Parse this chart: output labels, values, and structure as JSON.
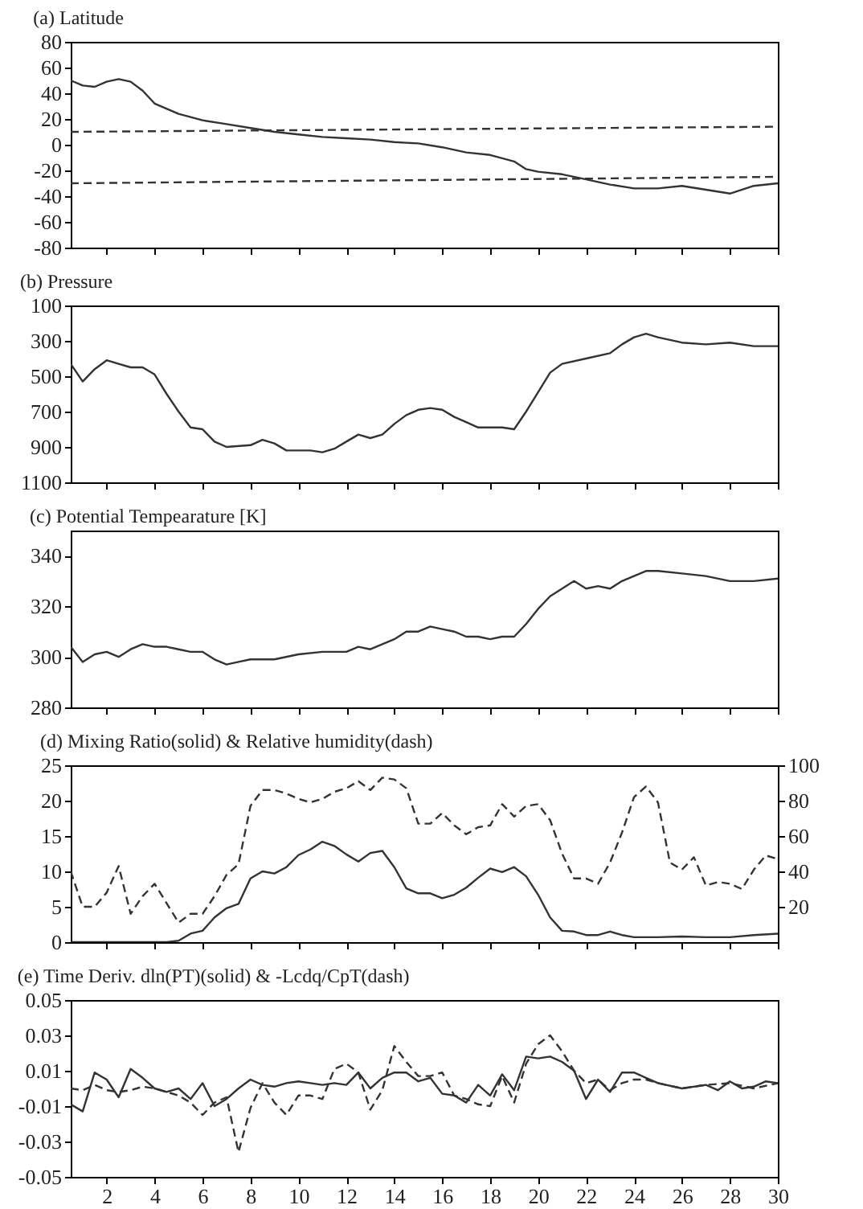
{
  "chart_data": [
    {
      "type": "line",
      "title": "(a) Latitude",
      "xlim": [
        0.5,
        30
      ],
      "xticks": [
        2,
        4,
        6,
        8,
        10,
        12,
        14,
        16,
        18,
        20,
        22,
        24,
        26,
        28,
        30
      ],
      "ylim": [
        -80,
        80
      ],
      "yticks": [
        -80,
        -60,
        -40,
        -20,
        0,
        20,
        40,
        60,
        80
      ],
      "tick_labels": "y",
      "grid": false,
      "series": [
        {
          "color": "#333333",
          "line_style": "solid",
          "x": [
            0.5,
            1,
            1.5,
            2,
            2.5,
            3,
            3.5,
            4,
            5,
            6,
            7,
            8,
            9,
            10,
            11,
            12,
            13,
            14,
            15,
            16,
            17,
            18,
            19,
            19.5,
            20,
            21,
            22,
            23,
            24,
            25,
            26,
            27,
            28,
            29,
            30
          ],
          "values": [
            50,
            46,
            45,
            49,
            51,
            49,
            42,
            32,
            24,
            19,
            16,
            13,
            10,
            8,
            6,
            5,
            4,
            2,
            1,
            -2,
            -6,
            -8,
            -13,
            -19,
            -21,
            -23,
            -27,
            -31,
            -34,
            -34,
            -32,
            -35,
            -38,
            -32,
            -30
          ]
        },
        {
          "color": "#333333",
          "line_style": "dashed",
          "x": [
            0.5,
            30
          ],
          "values": [
            10,
            14
          ]
        },
        {
          "color": "#333333",
          "line_style": "dashed",
          "x": [
            0.5,
            30
          ],
          "values": [
            -30,
            -25
          ]
        }
      ]
    },
    {
      "type": "line",
      "title": "(b) Pressure",
      "xlim": [
        0.5,
        30
      ],
      "xticks": [
        2,
        4,
        6,
        8,
        10,
        12,
        14,
        16,
        18,
        20,
        22,
        24,
        26,
        28,
        30
      ],
      "ylim": [
        1100,
        100
      ],
      "yticks": [
        100,
        300,
        500,
        700,
        900,
        1100
      ],
      "tick_labels": "y",
      "grid": false,
      "series": [
        {
          "color": "#333333",
          "line_style": "solid",
          "x": [
            0.5,
            1,
            1.5,
            2,
            2.5,
            3,
            3.5,
            4,
            4.5,
            5,
            5.5,
            6,
            6.5,
            7,
            8,
            8.5,
            9,
            9.5,
            10,
            10.5,
            11,
            11.5,
            12,
            12.5,
            13,
            13.5,
            14,
            14.5,
            15,
            15.5,
            16,
            16.5,
            17,
            17.5,
            18,
            18.5,
            19,
            19.5,
            20,
            20.5,
            21,
            22,
            23,
            23.5,
            24,
            24.5,
            25,
            26,
            27,
            28,
            29,
            30
          ],
          "values": [
            430,
            530,
            460,
            410,
            430,
            450,
            450,
            490,
            600,
            700,
            790,
            800,
            870,
            900,
            890,
            860,
            880,
            920,
            920,
            920,
            930,
            910,
            870,
            830,
            850,
            830,
            770,
            720,
            690,
            680,
            690,
            730,
            760,
            790,
            790,
            790,
            800,
            700,
            590,
            480,
            430,
            400,
            370,
            320,
            280,
            260,
            280,
            310,
            320,
            310,
            330,
            330
          ]
        }
      ]
    },
    {
      "type": "line",
      "title": "(c) Potential Tempearature [K]",
      "xlim": [
        0.5,
        30
      ],
      "xticks": [
        2,
        4,
        6,
        8,
        10,
        12,
        14,
        16,
        18,
        20,
        22,
        24,
        26,
        28,
        30
      ],
      "ylim": [
        280,
        350
      ],
      "yticks": [
        280,
        300,
        320,
        340
      ],
      "tick_labels": "y",
      "grid": false,
      "series": [
        {
          "color": "#333333",
          "line_style": "solid",
          "x": [
            0.5,
            1,
            1.5,
            2,
            2.5,
            3,
            3.5,
            4,
            4.5,
            5,
            5.5,
            6,
            6.5,
            7,
            7.5,
            8,
            9,
            10,
            11,
            12,
            12.5,
            13,
            13.5,
            14,
            14.5,
            15,
            15.5,
            16,
            16.5,
            17,
            17.5,
            18,
            18.5,
            19,
            19.5,
            20,
            20.5,
            21,
            21.5,
            22,
            22.5,
            23,
            23.5,
            24,
            24.5,
            25,
            26,
            27,
            28,
            29,
            30
          ],
          "values": [
            304,
            298,
            301,
            302,
            300,
            303,
            305,
            304,
            304,
            303,
            302,
            302,
            299,
            297,
            298,
            299,
            299,
            301,
            302,
            302,
            304,
            303,
            305,
            307,
            310,
            310,
            312,
            311,
            310,
            308,
            308,
            307,
            308,
            308,
            313,
            319,
            324,
            327,
            330,
            327,
            328,
            327,
            330,
            332,
            334,
            334,
            333,
            332,
            330,
            330,
            331
          ]
        }
      ]
    },
    {
      "type": "line",
      "title": "(d) Mixing Ratio(solid) & Relative humidity(dash)",
      "xlim": [
        0.5,
        30
      ],
      "xticks": [
        2,
        4,
        6,
        8,
        10,
        12,
        14,
        16,
        18,
        20,
        22,
        24,
        26,
        28,
        30
      ],
      "ylim": [
        0,
        25
      ],
      "yticks": [
        0,
        5,
        10,
        15,
        20,
        25
      ],
      "y2lim": [
        0,
        100
      ],
      "y2ticks": [
        20,
        40,
        60,
        80,
        100
      ],
      "tick_labels": "y",
      "grid": false,
      "series": [
        {
          "color": "#333333",
          "line_style": "solid",
          "x": [
            0.5,
            1,
            1.5,
            2,
            2.5,
            3,
            3.5,
            4,
            4.5,
            5,
            5.5,
            6,
            6.5,
            7,
            7.5,
            8,
            8.5,
            9,
            9.5,
            10,
            10.5,
            11,
            11.5,
            12,
            12.5,
            13,
            13.5,
            14,
            14.5,
            15,
            15.5,
            16,
            16.5,
            17,
            17.5,
            18,
            18.5,
            19,
            19.5,
            20,
            20.5,
            21,
            21.5,
            22,
            22.5,
            23,
            23.5,
            24,
            25,
            26,
            27,
            28,
            29,
            30
          ],
          "values": [
            0,
            0,
            0,
            0,
            0,
            0,
            0,
            0,
            0,
            0.2,
            1.2,
            1.6,
            3.5,
            4.8,
            5.4,
            9,
            10,
            9.7,
            10.6,
            12.3,
            13.1,
            14.2,
            13.6,
            12.4,
            11.4,
            12.6,
            12.9,
            10.6,
            7.6,
            6.9,
            6.9,
            6.2,
            6.7,
            7.7,
            9.1,
            10.4,
            9.9,
            10.6,
            9.3,
            6.7,
            3.5,
            1.6,
            1.5,
            1,
            1,
            1.5,
            1,
            0.7,
            0.7,
            0.8,
            0.7,
            0.7,
            1,
            1.2
          ]
        },
        {
          "color": "#333333",
          "line_style": "dashed",
          "axis": "y2",
          "x": [
            0.5,
            1,
            1.5,
            2,
            2.5,
            3,
            3.5,
            4,
            4.5,
            5,
            5.5,
            6,
            6.5,
            7,
            7.5,
            8,
            8.5,
            9,
            9.5,
            10,
            10.5,
            11,
            11.5,
            12,
            12.5,
            13,
            13.5,
            14,
            14.5,
            15,
            15.5,
            16,
            16.5,
            17,
            17.5,
            18,
            18.5,
            19,
            19.5,
            20,
            20.5,
            21,
            21.5,
            22,
            22.5,
            23,
            23.5,
            24,
            24.5,
            25,
            25.5,
            26,
            26.5,
            27,
            27.5,
            28,
            28.5,
            29,
            29.5,
            30
          ],
          "values": [
            40,
            20,
            20,
            28,
            43,
            16,
            26,
            33,
            22,
            11,
            16,
            16,
            26,
            38,
            44,
            77,
            86,
            86,
            84,
            81,
            79,
            81,
            85,
            87,
            91,
            86,
            93,
            92,
            87,
            67,
            67,
            73,
            66,
            61,
            65,
            66,
            78,
            71,
            77,
            78,
            69,
            50,
            36,
            36,
            33,
            45,
            62,
            82,
            88,
            79,
            45,
            41,
            48,
            32,
            34,
            33,
            30,
            41,
            49,
            47
          ]
        }
      ]
    },
    {
      "type": "line",
      "title": "(e) Time Deriv. dln(PT)(solid) & -Lcdq/CpT(dash)",
      "xlim": [
        0.5,
        30
      ],
      "xticks": [
        2,
        4,
        6,
        8,
        10,
        12,
        14,
        16,
        18,
        20,
        22,
        24,
        26,
        28,
        30
      ],
      "ylim": [
        -0.05,
        0.05
      ],
      "yticks": [
        -0.05,
        -0.03,
        -0.01,
        0.01,
        0.03,
        0.05
      ],
      "grid": false,
      "series": [
        {
          "color": "#333333",
          "line_style": "solid",
          "x": [
            0.5,
            1,
            1.5,
            2,
            2.5,
            3,
            3.5,
            4,
            4.5,
            5,
            5.5,
            6,
            6.5,
            7,
            7.5,
            8,
            8.5,
            9,
            9.5,
            10,
            10.5,
            11,
            11.5,
            12,
            12.5,
            13,
            13.5,
            14,
            14.5,
            15,
            15.5,
            16,
            16.5,
            17,
            17.5,
            18,
            18.5,
            19,
            19.5,
            20,
            20.5,
            21,
            21.5,
            22,
            22.5,
            23,
            23.5,
            24,
            24.5,
            25,
            26,
            27,
            27.5,
            28,
            28.5,
            29,
            29.5,
            30
          ],
          "values": [
            -0.009,
            -0.013,
            0.009,
            0.005,
            -0.005,
            0.011,
            0.006,
            0,
            -0.002,
            0,
            -0.006,
            0.003,
            -0.01,
            -0.006,
            0,
            0.005,
            0.002,
            0.001,
            0.003,
            0.004,
            0.003,
            0.002,
            0.003,
            0.002,
            0.009,
            0,
            0.006,
            0.009,
            0.009,
            0.004,
            0.006,
            -0.003,
            -0.004,
            -0.008,
            0.002,
            -0.004,
            0.008,
            -0.001,
            0.018,
            0.017,
            0.018,
            0.015,
            0.01,
            -0.006,
            0.005,
            -0.002,
            0.009,
            0.009,
            0.006,
            0.003,
            0,
            0.002,
            -0.001,
            0.004,
            0,
            0.001,
            0.004,
            0.003
          ]
        },
        {
          "color": "#333333",
          "line_style": "dashed",
          "x": [
            0.5,
            1,
            1.5,
            2,
            2.5,
            3,
            3.5,
            4,
            4.5,
            5,
            5.5,
            6,
            6.5,
            7,
            7.5,
            8,
            8.5,
            9,
            9.5,
            10,
            10.5,
            11,
            11.5,
            12,
            12.5,
            13,
            13.5,
            14,
            14.5,
            15,
            15.5,
            16,
            16.5,
            17,
            17.5,
            18,
            18.5,
            19,
            19.5,
            20,
            20.5,
            21,
            21.5,
            22,
            22.5,
            23,
            23.5,
            24,
            24.5,
            25,
            26,
            27,
            28,
            29,
            30
          ],
          "values": [
            0,
            -0.001,
            0.002,
            -0.001,
            -0.002,
            -0.001,
            0.001,
            0,
            -0.002,
            -0.004,
            -0.008,
            -0.015,
            -0.008,
            -0.005,
            -0.036,
            -0.011,
            0.003,
            -0.008,
            -0.015,
            -0.004,
            -0.004,
            -0.006,
            0.011,
            0.014,
            0.009,
            -0.012,
            -0.001,
            0.024,
            0.015,
            0.007,
            0.007,
            0.009,
            -0.004,
            -0.006,
            -0.009,
            -0.01,
            0.007,
            -0.008,
            0.014,
            0.025,
            0.03,
            0.021,
            0.01,
            0.003,
            0.005,
            -0.001,
            0.003,
            0.005,
            0.005,
            0.003,
            0,
            0.002,
            0.003,
            0,
            0.003
          ]
        }
      ]
    }
  ]
}
